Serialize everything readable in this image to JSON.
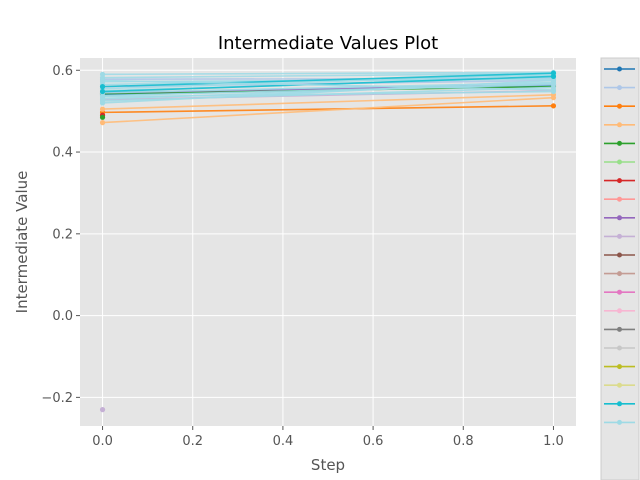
{
  "chart_data": {
    "type": "line",
    "title": "Intermediate Values Plot",
    "xlabel": "Step",
    "ylabel": "Intermediate Value",
    "xlim": [
      -0.05,
      1.05
    ],
    "ylim": [
      -0.27,
      0.63
    ],
    "xticks": [
      0.0,
      0.2,
      0.4,
      0.6,
      0.8,
      1.0
    ],
    "yticks": [
      -0.2,
      0.0,
      0.2,
      0.4,
      0.6
    ],
    "xtick_labels": [
      "0.0",
      "0.2",
      "0.4",
      "0.6",
      "0.8",
      "1.0"
    ],
    "ytick_labels": [
      "−0.2",
      "0.0",
      "0.2",
      "0.4",
      "0.6"
    ],
    "grid": true,
    "background": "#e5e5e5",
    "legend_placement": "right",
    "legend_labels_visible": false,
    "legend_colors": [
      "#1f77b4",
      "#aec7e8",
      "#ff7f0e",
      "#ffbb78",
      "#2ca02c",
      "#98df8a",
      "#d62728",
      "#ff9896",
      "#9467bd",
      "#c5b0d5",
      "#8c564b",
      "#c49c94",
      "#e377c2",
      "#f7b6d2",
      "#7f7f7f",
      "#c7c7c7",
      "#bcbd22",
      "#dbdb8d",
      "#17becf",
      "#9edae5"
    ],
    "series": [
      {
        "color": "#1f77b4",
        "points": [
          [
            0,
            0.54
          ],
          [
            1,
            0.563
          ]
        ]
      },
      {
        "color": "#2ca02c",
        "points": [
          [
            0,
            0.543
          ],
          [
            1,
            0.56
          ]
        ]
      },
      {
        "color": "#ff7f0e",
        "points": [
          [
            0,
            0.497
          ],
          [
            1,
            0.513
          ]
        ]
      },
      {
        "color": "#ffbb78",
        "points": [
          [
            0,
            0.472
          ],
          [
            1,
            0.533
          ]
        ]
      },
      {
        "color": "#ffbb78",
        "points": [
          [
            0,
            0.505
          ],
          [
            1,
            0.54
          ]
        ]
      },
      {
        "color": "#d62728",
        "points": [
          [
            0,
            0.49
          ]
        ]
      },
      {
        "color": "#2ca02c",
        "points": [
          [
            0,
            0.485
          ]
        ]
      },
      {
        "color": "#c5b0d5",
        "points": [
          [
            0,
            -0.23
          ]
        ]
      },
      {
        "color": "#9467bd",
        "points": [
          [
            0,
            0.545
          ],
          [
            1,
            0.565
          ]
        ]
      },
      {
        "color": "#c5b0d5",
        "points": [
          [
            0,
            0.528
          ],
          [
            1,
            0.55
          ]
        ]
      },
      {
        "color": "#aec7e8",
        "points": [
          [
            0,
            0.56
          ],
          [
            1,
            0.575
          ]
        ]
      },
      {
        "color": "#aec7e8",
        "points": [
          [
            0,
            0.578
          ],
          [
            1,
            0.58
          ]
        ]
      },
      {
        "color": "#9edae5",
        "points": [
          [
            0,
            0.555
          ],
          [
            1,
            0.59
          ]
        ]
      },
      {
        "color": "#9edae5",
        "points": [
          [
            0,
            0.55
          ],
          [
            1,
            0.583
          ]
        ]
      },
      {
        "color": "#9edae5",
        "points": [
          [
            0,
            0.565
          ],
          [
            1,
            0.588
          ]
        ]
      },
      {
        "color": "#9edae5",
        "points": [
          [
            0,
            0.572
          ],
          [
            1,
            0.578
          ]
        ]
      },
      {
        "color": "#9edae5",
        "points": [
          [
            0,
            0.582
          ],
          [
            1,
            0.592
          ]
        ]
      },
      {
        "color": "#9edae5",
        "points": [
          [
            0,
            0.59
          ],
          [
            1,
            0.595
          ]
        ]
      },
      {
        "color": "#9edae5",
        "points": [
          [
            0,
            0.545
          ],
          [
            1,
            0.57
          ]
        ]
      },
      {
        "color": "#9edae5",
        "points": [
          [
            0,
            0.538
          ],
          [
            1,
            0.565
          ]
        ]
      },
      {
        "color": "#9edae5",
        "points": [
          [
            0,
            0.525
          ],
          [
            1,
            0.558
          ]
        ]
      },
      {
        "color": "#9edae5",
        "points": [
          [
            0,
            0.52
          ],
          [
            1,
            0.575
          ]
        ]
      },
      {
        "color": "#17becf",
        "points": [
          [
            0,
            0.548
          ],
          [
            1,
            0.585
          ]
        ]
      },
      {
        "color": "#17becf",
        "points": [
          [
            0,
            0.56
          ],
          [
            1,
            0.593
          ]
        ]
      },
      {
        "color": "#9edae5",
        "points": [
          [
            0,
            0.535
          ],
          [
            1,
            0.548
          ]
        ]
      },
      {
        "color": "#9edae5",
        "points": [
          [
            0,
            0.575
          ],
          [
            1,
            0.552
          ]
        ]
      },
      {
        "color": "#9edae5",
        "points": [
          [
            0,
            0.53
          ],
          [
            1,
            0.568
          ]
        ]
      }
    ]
  }
}
